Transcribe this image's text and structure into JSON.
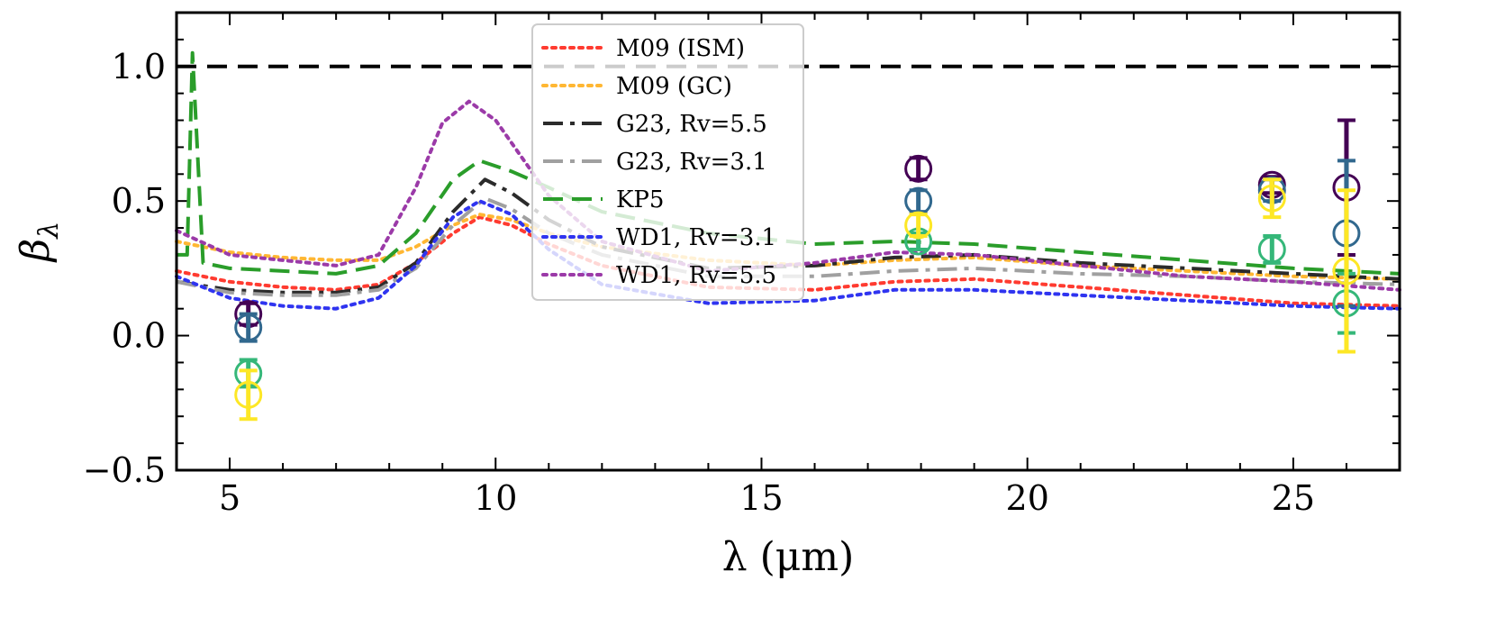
{
  "chart_data": {
    "type": "line",
    "title": "",
    "xlabel": "λ (μm)",
    "ylabel": "β",
    "ylabel_sub": "λ",
    "xlim": [
      4,
      27
    ],
    "ylim": [
      -0.5,
      1.2
    ],
    "xticks": [
      5,
      10,
      15,
      20,
      25
    ],
    "xtick_labels": [
      "5",
      "10",
      "15",
      "20",
      "25"
    ],
    "yticks": [
      -0.5,
      0.0,
      0.5,
      1.0
    ],
    "ytick_labels": [
      "−0.5",
      "0.0",
      "0.5",
      "1.0"
    ],
    "reference_line": {
      "y": 1.0,
      "color": "#000000"
    },
    "legend_position": "top-center",
    "series": [
      {
        "name": "M09 (ISM)",
        "color": "#ff3b30",
        "style": "dotted",
        "x": [
          4,
          5,
          6,
          7,
          7.8,
          8.5,
          9.2,
          9.7,
          10.3,
          11,
          12,
          14,
          16,
          17.5,
          19,
          21,
          23,
          25,
          27
        ],
        "y": [
          0.24,
          0.2,
          0.18,
          0.17,
          0.19,
          0.27,
          0.38,
          0.44,
          0.41,
          0.34,
          0.26,
          0.18,
          0.17,
          0.2,
          0.21,
          0.18,
          0.15,
          0.12,
          0.11
        ]
      },
      {
        "name": "M09 (GC)",
        "color": "#ffb733",
        "style": "dotted",
        "x": [
          4,
          5,
          6,
          7,
          7.8,
          8.5,
          9.2,
          9.7,
          10.3,
          11,
          12,
          14,
          16,
          17.5,
          19,
          21,
          23,
          25,
          27
        ],
        "y": [
          0.35,
          0.31,
          0.29,
          0.28,
          0.28,
          0.33,
          0.41,
          0.45,
          0.43,
          0.38,
          0.33,
          0.28,
          0.26,
          0.28,
          0.29,
          0.26,
          0.24,
          0.22,
          0.21
        ]
      },
      {
        "name": "G23, Rv=5.5",
        "color": "#2b2b2b",
        "style": "dashdot",
        "x": [
          4,
          5,
          6,
          7,
          7.8,
          8.5,
          9.2,
          9.8,
          10.3,
          11,
          12,
          14,
          16,
          17.5,
          19,
          21,
          23,
          25,
          27
        ],
        "y": [
          0.2,
          0.17,
          0.16,
          0.16,
          0.18,
          0.27,
          0.46,
          0.58,
          0.53,
          0.43,
          0.33,
          0.25,
          0.26,
          0.29,
          0.3,
          0.27,
          0.25,
          0.23,
          0.21
        ]
      },
      {
        "name": "G23, Rv=3.1",
        "color": "#a0a0a0",
        "style": "dashdot",
        "x": [
          4,
          5,
          6,
          7,
          7.8,
          8.5,
          9.2,
          9.8,
          10.3,
          11,
          12,
          14,
          16,
          17.5,
          19,
          21,
          23,
          25,
          27
        ],
        "y": [
          0.2,
          0.16,
          0.15,
          0.15,
          0.17,
          0.25,
          0.41,
          0.51,
          0.47,
          0.38,
          0.3,
          0.22,
          0.22,
          0.24,
          0.25,
          0.23,
          0.22,
          0.2,
          0.19
        ]
      },
      {
        "name": "KP5",
        "color": "#2a9d2a",
        "style": "dashed",
        "x": [
          4,
          4.2,
          4.3,
          4.5,
          5,
          6,
          7,
          7.8,
          8.5,
          9.2,
          9.7,
          10.3,
          11,
          12,
          14,
          16,
          17.5,
          19,
          21,
          23,
          25,
          27
        ],
        "y": [
          0.3,
          0.3,
          1.05,
          0.27,
          0.25,
          0.24,
          0.23,
          0.26,
          0.38,
          0.58,
          0.65,
          0.61,
          0.55,
          0.46,
          0.38,
          0.34,
          0.35,
          0.34,
          0.31,
          0.28,
          0.25,
          0.23
        ]
      },
      {
        "name": "WD1, Rv=3.1",
        "color": "#2f34f0",
        "style": "dotted",
        "x": [
          4,
          5,
          6,
          7,
          7.8,
          8.5,
          9.2,
          9.7,
          10.3,
          11,
          12,
          14,
          16,
          17.5,
          19,
          21,
          23,
          25,
          27
        ],
        "y": [
          0.22,
          0.14,
          0.11,
          0.1,
          0.14,
          0.26,
          0.44,
          0.5,
          0.45,
          0.32,
          0.19,
          0.12,
          0.13,
          0.17,
          0.17,
          0.15,
          0.13,
          0.11,
          0.1
        ]
      },
      {
        "name": "WD1, Rv=5.5",
        "color": "#9b3aa8",
        "style": "dotted",
        "x": [
          4,
          5,
          6,
          7,
          7.8,
          8.5,
          9,
          9.5,
          10,
          10.5,
          11,
          12,
          14,
          16,
          17.5,
          19,
          21,
          23,
          25,
          27
        ],
        "y": [
          0.39,
          0.3,
          0.28,
          0.26,
          0.3,
          0.55,
          0.79,
          0.87,
          0.8,
          0.66,
          0.52,
          0.35,
          0.24,
          0.27,
          0.31,
          0.3,
          0.26,
          0.22,
          0.2,
          0.17
        ]
      }
    ],
    "points": [
      {
        "x": 5.35,
        "y": 0.08,
        "err": 0.04,
        "color": "#440154"
      },
      {
        "x": 5.35,
        "y": 0.03,
        "err": 0.05,
        "color": "#31688e"
      },
      {
        "x": 5.35,
        "y": -0.14,
        "err": 0.05,
        "color": "#35b779"
      },
      {
        "x": 5.35,
        "y": -0.22,
        "err": 0.09,
        "color": "#fde725"
      },
      {
        "x": 17.95,
        "y": 0.62,
        "err": 0.04,
        "color": "#440154"
      },
      {
        "x": 17.95,
        "y": 0.5,
        "err": 0.04,
        "color": "#31688e"
      },
      {
        "x": 17.95,
        "y": 0.35,
        "err": 0.03,
        "color": "#35b779"
      },
      {
        "x": 17.95,
        "y": 0.41,
        "err": 0.04,
        "color": "#fde725"
      },
      {
        "x": 24.6,
        "y": 0.56,
        "err": 0.03,
        "color": "#440154"
      },
      {
        "x": 24.6,
        "y": 0.54,
        "err": 0.04,
        "color": "#31688e"
      },
      {
        "x": 24.6,
        "y": 0.32,
        "err": 0.05,
        "color": "#35b779"
      },
      {
        "x": 24.6,
        "y": 0.51,
        "err": 0.07,
        "color": "#fde725"
      },
      {
        "x": 26.0,
        "y": 0.55,
        "err": 0.25,
        "color": "#440154"
      },
      {
        "x": 26.0,
        "y": 0.38,
        "err": 0.27,
        "color": "#31688e"
      },
      {
        "x": 26.0,
        "y": 0.12,
        "err": 0.11,
        "color": "#35b779"
      },
      {
        "x": 26.0,
        "y": 0.24,
        "err": 0.3,
        "color": "#fde725"
      }
    ]
  }
}
